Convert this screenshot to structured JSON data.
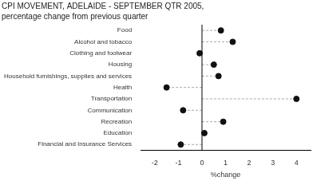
{
  "chart_data": {
    "type": "lollipop",
    "title": "CPI MOVEMENT, ADELAIDE - SEPTEMBER QTR 2005,",
    "subtitle": "percentage change from previous quarter",
    "x_label": "%change",
    "categories": [
      "Food",
      "Alcohol and tobacco",
      "Clothing and footwear",
      "Housing",
      "Household furnishings, supplies and services",
      "Health",
      "Transportation",
      "Communication",
      "Recreation",
      "Education",
      "Financial and Insurance Services"
    ],
    "values": [
      0.8,
      1.3,
      -0.1,
      0.5,
      0.7,
      -1.5,
      4.0,
      -0.8,
      0.9,
      0.1,
      -0.9
    ],
    "xlim": [
      -2.6,
      4.6
    ],
    "xticks": [
      -2,
      -1,
      0,
      1,
      2,
      3,
      4
    ],
    "orientation": "horizontal",
    "color": "#111111",
    "marker": "circle",
    "line_style": "dashed",
    "grid": false,
    "tick_labels": true
  }
}
